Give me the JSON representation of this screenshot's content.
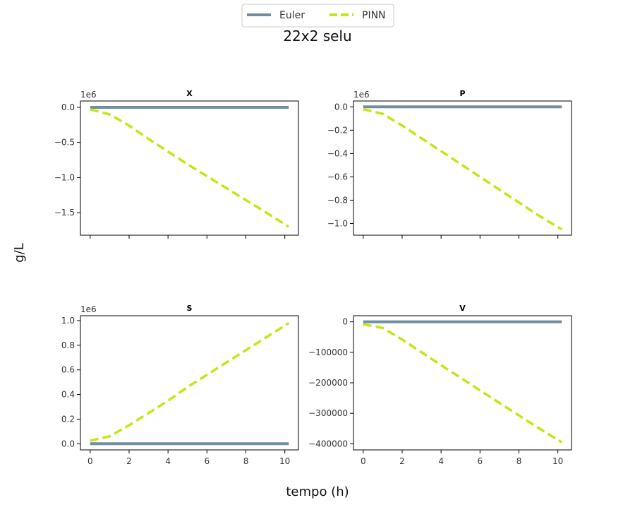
{
  "figure": {
    "suptitle": "22x2 selu",
    "xlabel": "tempo (h)",
    "ylabel": "g/L"
  },
  "legend": {
    "items": [
      {
        "label": "Euler",
        "color": "#6f8fa0",
        "style": "solid"
      },
      {
        "label": "PINN",
        "color": "#c8e415",
        "style": "dashed"
      }
    ]
  },
  "chart_data": [
    {
      "type": "line",
      "title": "X",
      "offset_text": "1e6",
      "xlim": [
        -0.5,
        10.7
      ],
      "ylim": [
        -1.82,
        0.09
      ],
      "xticks": [
        0,
        2,
        4,
        6,
        8,
        10
      ],
      "show_xtick_labels": false,
      "yticks": [
        0.0,
        -0.5,
        -1.0,
        -1.5
      ],
      "ytick_labels": [
        "0.0",
        "−0.5",
        "−1.0",
        "−1.5"
      ],
      "series": [
        {
          "name": "Euler",
          "x": [
            0,
            10.2
          ],
          "y": [
            0.0,
            0.0
          ]
        },
        {
          "name": "PINN",
          "x": [
            0,
            1,
            2,
            3,
            4,
            5,
            6,
            7,
            8,
            9,
            10.2
          ],
          "y": [
            -0.03,
            -0.1,
            -0.26,
            -0.45,
            -0.63,
            -0.81,
            -0.98,
            -1.15,
            -1.32,
            -1.49,
            -1.7
          ]
        }
      ]
    },
    {
      "type": "line",
      "title": "P",
      "offset_text": "1e6",
      "xlim": [
        -0.5,
        10.7
      ],
      "ylim": [
        -1.1,
        0.05
      ],
      "xticks": [
        0,
        2,
        4,
        6,
        8,
        10
      ],
      "show_xtick_labels": false,
      "yticks": [
        0.0,
        -0.2,
        -0.4,
        -0.6,
        -0.8,
        -1.0
      ],
      "ytick_labels": [
        "0.0",
        "−0.2",
        "−0.4",
        "−0.6",
        "−0.8",
        "−1.0"
      ],
      "series": [
        {
          "name": "Euler",
          "x": [
            0,
            10.2
          ],
          "y": [
            0.0,
            0.0
          ]
        },
        {
          "name": "PINN",
          "x": [
            0,
            1,
            2,
            3,
            4,
            5,
            6,
            7,
            8,
            9,
            10.2
          ],
          "y": [
            -0.02,
            -0.06,
            -0.16,
            -0.27,
            -0.38,
            -0.49,
            -0.6,
            -0.71,
            -0.82,
            -0.93,
            -1.05
          ]
        }
      ]
    },
    {
      "type": "line",
      "title": "S",
      "offset_text": "1e6",
      "xlim": [
        -0.5,
        10.7
      ],
      "ylim": [
        -0.05,
        1.04
      ],
      "xticks": [
        0,
        2,
        4,
        6,
        8,
        10
      ],
      "show_xtick_labels": true,
      "xtick_labels": [
        "0",
        "2",
        "4",
        "6",
        "8",
        "10"
      ],
      "yticks": [
        0.0,
        0.2,
        0.4,
        0.6,
        0.8,
        1.0
      ],
      "ytick_labels": [
        "0.0",
        "0.2",
        "0.4",
        "0.6",
        "0.8",
        "1.0"
      ],
      "series": [
        {
          "name": "Euler",
          "x": [
            0,
            10.2
          ],
          "y": [
            0.0,
            0.0
          ]
        },
        {
          "name": "PINN",
          "x": [
            0,
            1,
            2,
            3,
            4,
            5,
            6,
            7,
            8,
            9,
            10.2
          ],
          "y": [
            0.025,
            0.06,
            0.15,
            0.25,
            0.35,
            0.46,
            0.56,
            0.66,
            0.76,
            0.86,
            0.98
          ]
        }
      ]
    },
    {
      "type": "line",
      "title": "V",
      "offset_text": "",
      "xlim": [
        -0.5,
        10.7
      ],
      "ylim": [
        -420000,
        20000
      ],
      "xticks": [
        0,
        2,
        4,
        6,
        8,
        10
      ],
      "show_xtick_labels": true,
      "xtick_labels": [
        "0",
        "2",
        "4",
        "6",
        "8",
        "10"
      ],
      "yticks": [
        0,
        -100000,
        -200000,
        -300000,
        -400000
      ],
      "ytick_labels": [
        "0",
        "−100000",
        "−200000",
        "−300000",
        "−400000"
      ],
      "series": [
        {
          "name": "Euler",
          "x": [
            0,
            10.2
          ],
          "y": [
            0,
            0
          ]
        },
        {
          "name": "PINN",
          "x": [
            0,
            1,
            2,
            3,
            4,
            5,
            6,
            7,
            8,
            9,
            10.2
          ],
          "y": [
            -8000,
            -20000,
            -58000,
            -100000,
            -142000,
            -183000,
            -225000,
            -266000,
            -307000,
            -348000,
            -395000
          ]
        }
      ]
    }
  ]
}
